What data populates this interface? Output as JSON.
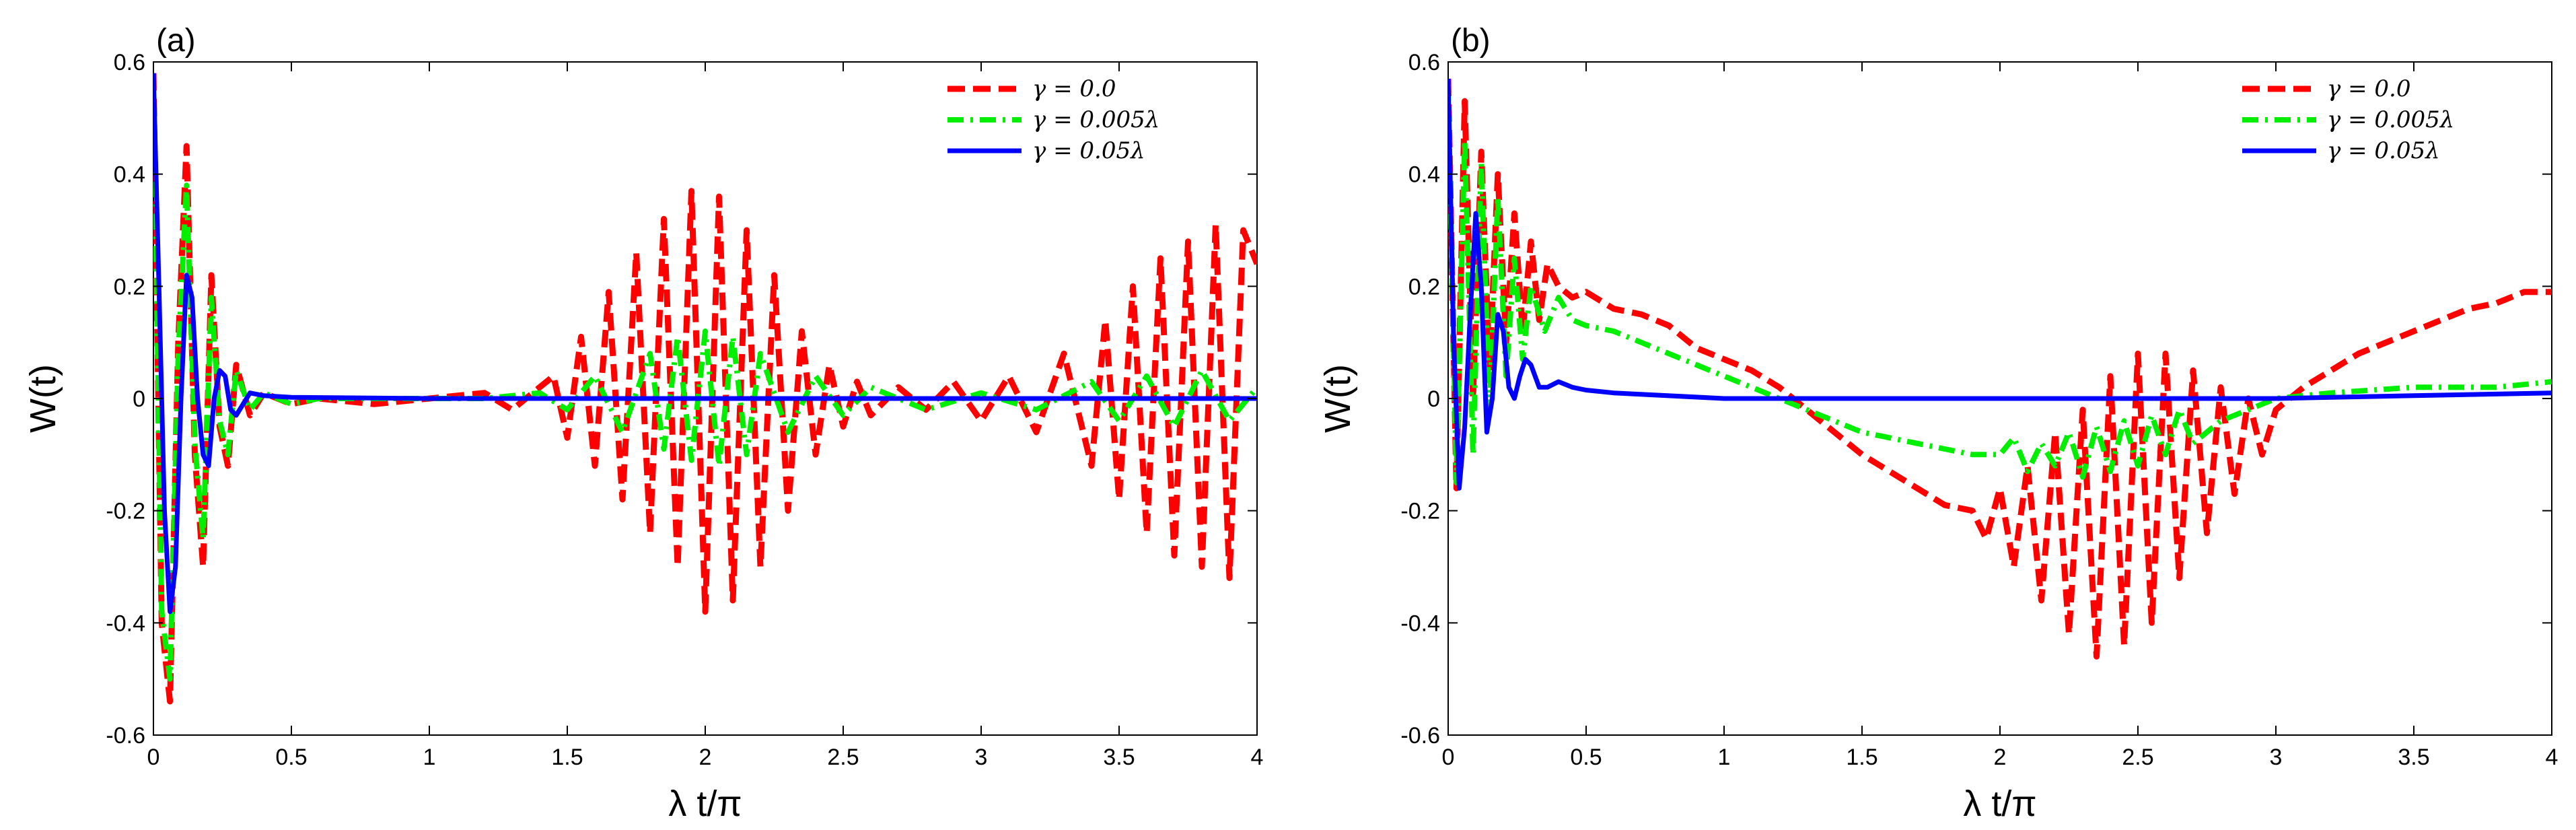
{
  "chart_data": [
    {
      "type": "line",
      "panel_label": "(a)",
      "xlabel": "λ t/π",
      "ylabel": "W(t)",
      "xlim": [
        0,
        4
      ],
      "ylim": [
        -0.6,
        0.6
      ],
      "xticks": [
        0,
        0.5,
        1,
        1.5,
        2,
        2.5,
        3,
        3.5,
        4
      ],
      "xtick_labels": [
        "0",
        "0.5",
        "1",
        "1.5",
        "2",
        "2.5",
        "3",
        "3.5",
        "4"
      ],
      "yticks": [
        0.6,
        0.4,
        0.2,
        0,
        -0.2,
        -0.4,
        -0.6
      ],
      "ytick_labels": [
        "0.6",
        "0.4",
        "0.2",
        "0",
        "-0.2",
        "-0.4",
        "-0.6"
      ],
      "grid": false,
      "legend_position": "top-right",
      "series": [
        {
          "name": "γ = 0.0",
          "color": "#ff0000",
          "style": "dashed",
          "x": [
            0,
            0.03,
            0.06,
            0.09,
            0.12,
            0.15,
            0.18,
            0.21,
            0.24,
            0.27,
            0.3,
            0.35,
            0.4,
            0.5,
            0.6,
            0.8,
            1.0,
            1.2,
            1.3,
            1.4,
            1.45,
            1.5,
            1.55,
            1.6,
            1.65,
            1.7,
            1.75,
            1.8,
            1.85,
            1.9,
            1.95,
            2.0,
            2.05,
            2.1,
            2.15,
            2.2,
            2.25,
            2.3,
            2.35,
            2.4,
            2.45,
            2.5,
            2.55,
            2.6,
            2.7,
            2.8,
            2.9,
            3.0,
            3.1,
            3.2,
            3.3,
            3.4,
            3.45,
            3.5,
            3.55,
            3.6,
            3.65,
            3.7,
            3.75,
            3.8,
            3.85,
            3.9,
            3.95,
            4.0
          ],
          "y": [
            0.58,
            -0.4,
            -0.54,
            0.1,
            0.45,
            -0.1,
            -0.3,
            0.22,
            -0.05,
            -0.12,
            0.06,
            -0.03,
            0.01,
            -0.01,
            0.0,
            -0.01,
            0.0,
            0.01,
            -0.02,
            0.02,
            0.04,
            -0.07,
            0.11,
            -0.12,
            0.19,
            -0.18,
            0.26,
            -0.24,
            0.32,
            -0.3,
            0.37,
            -0.38,
            0.36,
            -0.36,
            0.3,
            -0.3,
            0.22,
            -0.2,
            0.12,
            -0.1,
            0.06,
            -0.05,
            0.03,
            -0.03,
            0.02,
            -0.02,
            0.03,
            -0.04,
            0.04,
            -0.06,
            0.08,
            -0.12,
            0.14,
            -0.18,
            0.2,
            -0.24,
            0.25,
            -0.28,
            0.28,
            -0.3,
            0.31,
            -0.32,
            0.3,
            0.24
          ]
        },
        {
          "name": "γ = 0.005λ",
          "color": "#00ee00",
          "style": "dashdot",
          "x": [
            0,
            0.03,
            0.06,
            0.09,
            0.12,
            0.15,
            0.18,
            0.21,
            0.24,
            0.27,
            0.3,
            0.35,
            0.4,
            0.5,
            0.6,
            0.8,
            1.0,
            1.2,
            1.4,
            1.5,
            1.6,
            1.7,
            1.8,
            1.85,
            1.9,
            1.95,
            2.0,
            2.05,
            2.1,
            2.15,
            2.2,
            2.3,
            2.4,
            2.5,
            2.6,
            2.8,
            3.0,
            3.2,
            3.4,
            3.5,
            3.6,
            3.7,
            3.8,
            3.9,
            4.0
          ],
          "y": [
            0.56,
            -0.38,
            -0.5,
            0.08,
            0.38,
            -0.08,
            -0.25,
            0.18,
            -0.04,
            -0.1,
            0.05,
            -0.02,
            0.01,
            -0.01,
            0.0,
            0.0,
            0.0,
            0.0,
            0.01,
            -0.02,
            0.04,
            -0.06,
            0.08,
            -0.09,
            0.11,
            -0.11,
            0.12,
            -0.12,
            0.11,
            -0.1,
            0.08,
            -0.06,
            0.04,
            -0.03,
            0.02,
            -0.02,
            0.01,
            -0.02,
            0.03,
            -0.04,
            0.04,
            -0.05,
            0.05,
            -0.04,
            0.02
          ]
        },
        {
          "name": "γ = 0.05λ",
          "color": "#0000ff",
          "style": "solid",
          "x": [
            0,
            0.02,
            0.04,
            0.06,
            0.08,
            0.1,
            0.12,
            0.14,
            0.16,
            0.18,
            0.2,
            0.22,
            0.24,
            0.26,
            0.28,
            0.3,
            0.35,
            0.4,
            0.5,
            1.0,
            1.5,
            2.0,
            2.5,
            3.0,
            3.5,
            4.0
          ],
          "y": [
            0.58,
            0.2,
            -0.2,
            -0.38,
            -0.3,
            0.0,
            0.22,
            0.18,
            0.0,
            -0.1,
            -0.12,
            0.0,
            0.05,
            0.04,
            -0.02,
            -0.03,
            0.01,
            0.005,
            0.002,
            0.0,
            0.0,
            0.0,
            0.0,
            0.0,
            0.0,
            0.0
          ]
        }
      ]
    },
    {
      "type": "line",
      "panel_label": "(b)",
      "xlabel": "λ t/π",
      "ylabel": "W(t)",
      "xlim": [
        0,
        4
      ],
      "ylim": [
        -0.6,
        0.6
      ],
      "xticks": [
        0,
        0.5,
        1,
        1.5,
        2,
        2.5,
        3,
        3.5,
        4
      ],
      "xtick_labels": [
        "0",
        "0.5",
        "1",
        "1.5",
        "2",
        "2.5",
        "3",
        "3.5",
        "4"
      ],
      "yticks": [
        0.6,
        0.4,
        0.2,
        0,
        -0.2,
        -0.4,
        -0.6
      ],
      "ytick_labels": [
        "0.6",
        "0.4",
        "0.2",
        "0",
        "-0.2",
        "-0.4",
        "-0.6"
      ],
      "grid": false,
      "legend_position": "top-right",
      "series": [
        {
          "name": "γ = 0.0",
          "color": "#ff0000",
          "style": "dashed",
          "x": [
            0,
            0.03,
            0.06,
            0.09,
            0.12,
            0.15,
            0.18,
            0.21,
            0.24,
            0.27,
            0.3,
            0.33,
            0.36,
            0.4,
            0.45,
            0.5,
            0.6,
            0.7,
            0.8,
            0.9,
            1.0,
            1.1,
            1.2,
            1.3,
            1.4,
            1.5,
            1.6,
            1.7,
            1.8,
            1.9,
            1.95,
            2.0,
            2.05,
            2.1,
            2.15,
            2.2,
            2.25,
            2.3,
            2.35,
            2.4,
            2.45,
            2.5,
            2.55,
            2.6,
            2.65,
            2.7,
            2.75,
            2.8,
            2.85,
            2.9,
            2.95,
            3.0,
            3.1,
            3.2,
            3.3,
            3.4,
            3.5,
            3.6,
            3.7,
            3.8,
            3.9,
            4.0
          ],
          "y": [
            0.57,
            -0.16,
            0.53,
            0.0,
            0.44,
            0.05,
            0.4,
            0.1,
            0.33,
            0.12,
            0.28,
            0.14,
            0.24,
            0.2,
            0.18,
            0.19,
            0.16,
            0.15,
            0.13,
            0.09,
            0.07,
            0.05,
            0.02,
            -0.02,
            -0.06,
            -0.1,
            -0.13,
            -0.16,
            -0.19,
            -0.2,
            -0.25,
            -0.16,
            -0.3,
            -0.12,
            -0.36,
            -0.06,
            -0.42,
            -0.02,
            -0.46,
            0.04,
            -0.44,
            0.08,
            -0.4,
            0.08,
            -0.32,
            0.05,
            -0.24,
            0.02,
            -0.17,
            0.0,
            -0.1,
            -0.02,
            0.02,
            0.05,
            0.08,
            0.1,
            0.12,
            0.14,
            0.16,
            0.17,
            0.19,
            0.19
          ]
        },
        {
          "name": "γ = 0.005λ",
          "color": "#00ee00",
          "style": "dashdot",
          "x": [
            0,
            0.03,
            0.06,
            0.09,
            0.12,
            0.15,
            0.18,
            0.21,
            0.24,
            0.27,
            0.3,
            0.35,
            0.4,
            0.45,
            0.5,
            0.6,
            0.7,
            0.8,
            0.9,
            1.0,
            1.1,
            1.2,
            1.3,
            1.4,
            1.5,
            1.6,
            1.7,
            1.8,
            1.9,
            2.0,
            2.05,
            2.1,
            2.15,
            2.2,
            2.25,
            2.3,
            2.35,
            2.4,
            2.45,
            2.5,
            2.55,
            2.6,
            2.65,
            2.7,
            2.8,
            2.9,
            3.0,
            3.2,
            3.5,
            3.8,
            4.0
          ],
          "y": [
            0.56,
            -0.15,
            0.46,
            -0.1,
            0.42,
            -0.02,
            0.36,
            0.04,
            0.25,
            0.07,
            0.2,
            0.12,
            0.18,
            0.14,
            0.13,
            0.12,
            0.1,
            0.08,
            0.06,
            0.04,
            0.02,
            0.0,
            -0.02,
            -0.04,
            -0.06,
            -0.07,
            -0.08,
            -0.09,
            -0.1,
            -0.1,
            -0.07,
            -0.13,
            -0.08,
            -0.12,
            -0.06,
            -0.14,
            -0.05,
            -0.13,
            -0.04,
            -0.12,
            -0.03,
            -0.1,
            -0.02,
            -0.08,
            -0.04,
            -0.02,
            0.0,
            0.01,
            0.02,
            0.02,
            0.03
          ]
        },
        {
          "name": "γ = 0.05λ",
          "color": "#0000ff",
          "style": "solid",
          "x": [
            0,
            0.02,
            0.04,
            0.06,
            0.08,
            0.1,
            0.12,
            0.14,
            0.16,
            0.18,
            0.2,
            0.22,
            0.24,
            0.26,
            0.28,
            0.3,
            0.33,
            0.36,
            0.4,
            0.45,
            0.5,
            0.6,
            1.0,
            1.5,
            2.0,
            2.5,
            3.0,
            3.5,
            4.0
          ],
          "y": [
            0.57,
            0.1,
            -0.16,
            -0.05,
            0.15,
            0.33,
            0.2,
            -0.06,
            0.0,
            0.15,
            0.12,
            0.02,
            0.0,
            0.04,
            0.07,
            0.06,
            0.02,
            0.02,
            0.03,
            0.02,
            0.015,
            0.01,
            0.0,
            0.0,
            0.0,
            0.0,
            0.0,
            0.005,
            0.01
          ]
        }
      ]
    }
  ]
}
